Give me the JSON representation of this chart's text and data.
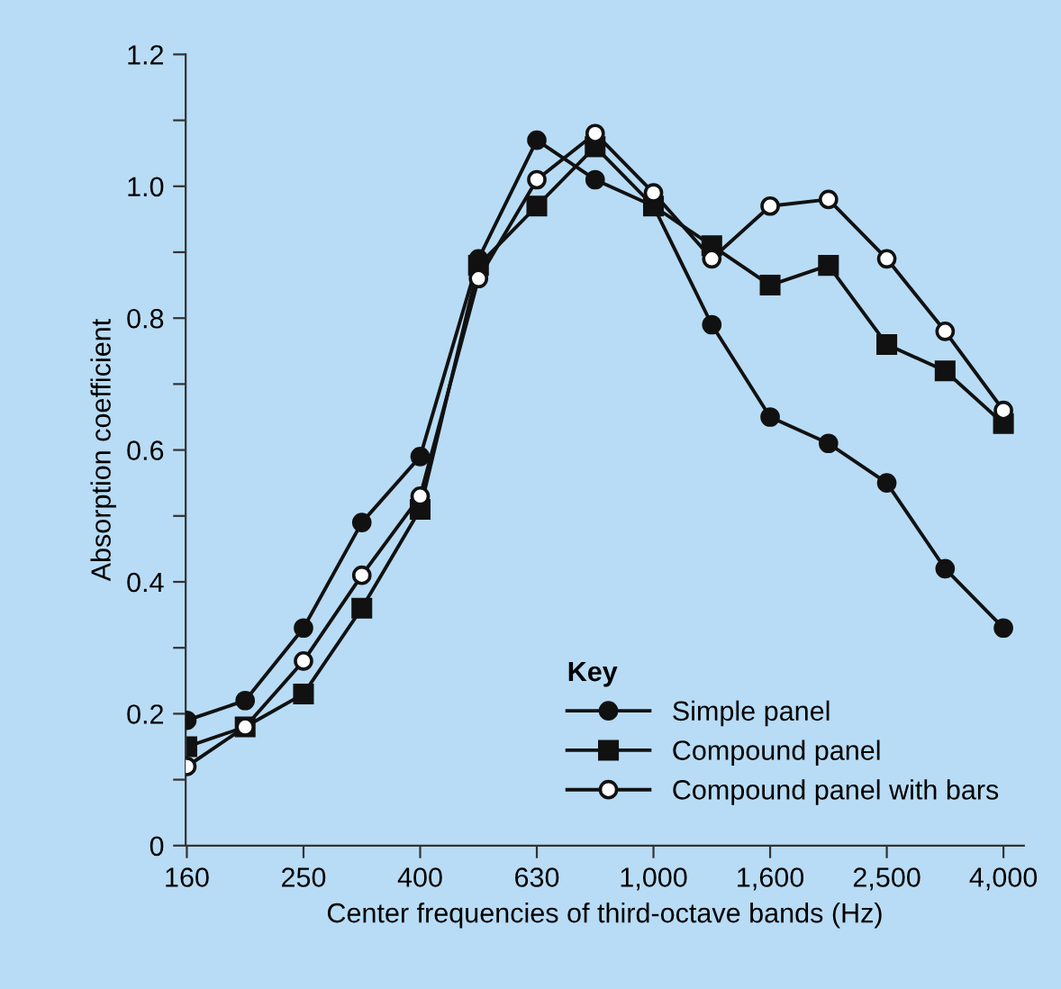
{
  "chart_data": {
    "type": "line",
    "xlabel": "Center frequencies of third-octave bands (Hz)",
    "ylabel": "Absorption coefficient",
    "legend_title": "Key",
    "categories": [
      "160",
      null,
      "250",
      null,
      "400",
      null,
      "630",
      null,
      "1,000",
      null,
      "1,600",
      null,
      "2,500",
      null,
      "4,000"
    ],
    "series": [
      {
        "name": "Simple panel",
        "color": "#111111",
        "marker": "circle",
        "values": [
          0.19,
          0.22,
          0.33,
          0.49,
          0.59,
          0.89,
          1.07,
          1.01,
          0.97,
          0.79,
          0.65,
          0.61,
          0.55,
          0.42,
          0.33
        ]
      },
      {
        "name": "Compound panel",
        "color": "#111111",
        "marker": "square",
        "values": [
          0.15,
          0.18,
          0.23,
          0.36,
          0.51,
          0.88,
          0.97,
          1.06,
          0.97,
          0.91,
          0.85,
          0.88,
          0.76,
          0.72,
          0.64
        ]
      },
      {
        "name": "Compound panel with bars",
        "color": "#111111",
        "marker": "open circle",
        "values": [
          0.12,
          0.18,
          0.28,
          0.41,
          0.53,
          0.86,
          1.01,
          1.08,
          0.99,
          0.89,
          0.97,
          0.98,
          0.89,
          0.78,
          0.66
        ]
      }
    ],
    "ylim": [
      0,
      1.2
    ],
    "yticks": [
      {
        "value": 0,
        "label": "0"
      },
      {
        "value": 0.1,
        "label": null
      },
      {
        "value": 0.2,
        "label": "0.2"
      },
      {
        "value": 0.3,
        "label": null
      },
      {
        "value": 0.4,
        "label": "0.4"
      },
      {
        "value": 0.5,
        "label": null
      },
      {
        "value": 0.6,
        "label": "0.6"
      },
      {
        "value": 0.7,
        "label": null
      },
      {
        "value": 0.8,
        "label": "0.8"
      },
      {
        "value": 0.9,
        "label": null
      },
      {
        "value": 1.0,
        "label": "1.0"
      },
      {
        "value": 1.1,
        "label": null
      },
      {
        "value": 1.2,
        "label": "1.2"
      }
    ],
    "grid": false,
    "legend": "bottom right",
    "line_style": "solid"
  }
}
